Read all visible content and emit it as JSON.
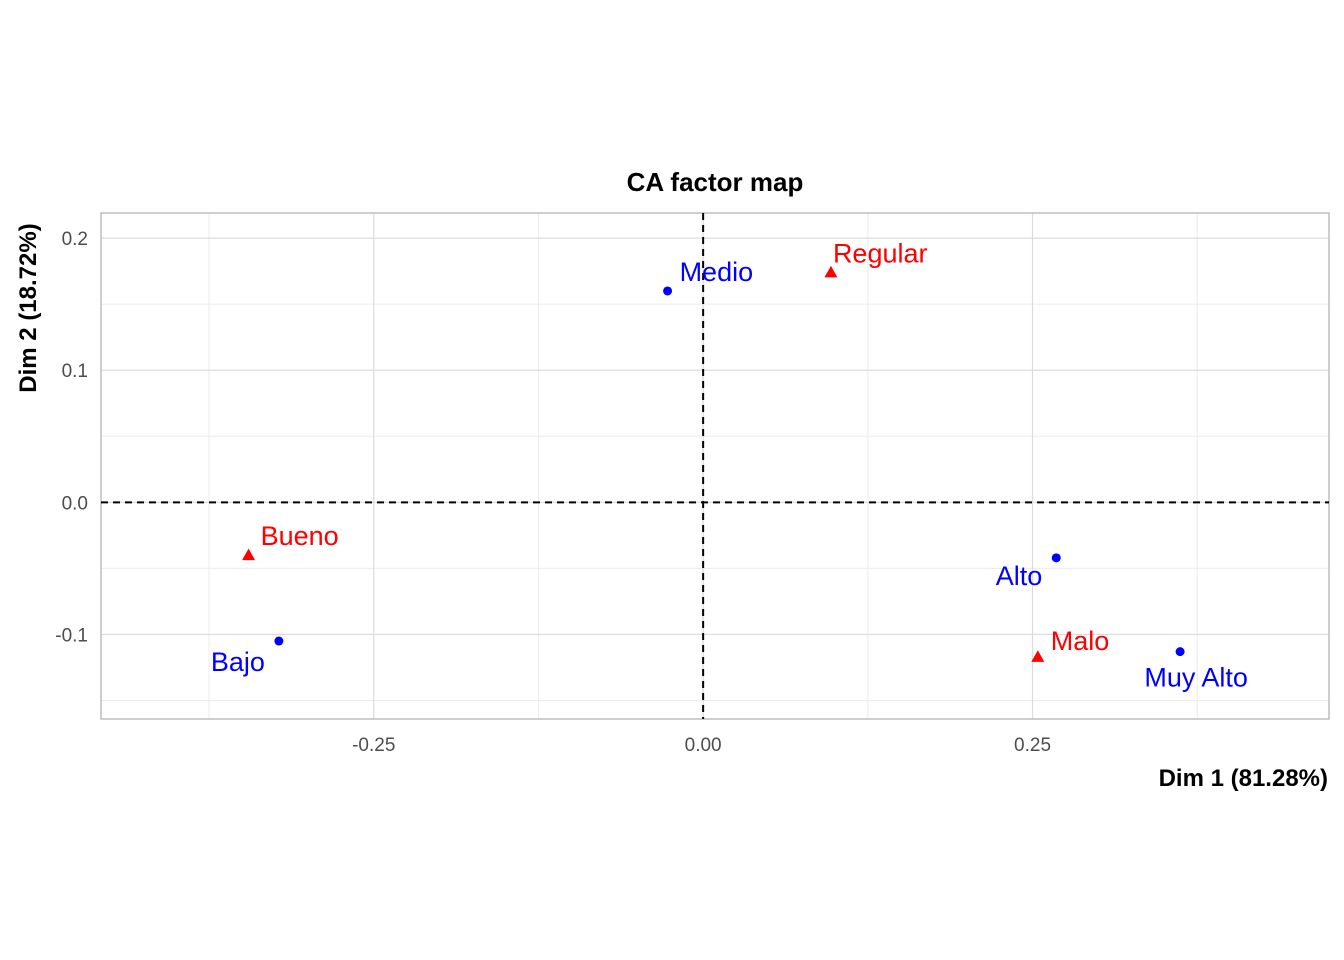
{
  "chart_data": {
    "type": "scatter",
    "title": "CA factor map",
    "xlabel": "Dim 1 (81.28%)",
    "ylabel": "Dim 2 (18.72%)",
    "xlim": [
      -0.457,
      0.475
    ],
    "ylim": [
      -0.164,
      0.219
    ],
    "x_ticks": [
      -0.25,
      0.0,
      0.25
    ],
    "x_tick_labels": [
      "-0.25",
      "0.00",
      "0.25"
    ],
    "y_ticks": [
      -0.1,
      0.0,
      0.1,
      0.2
    ],
    "y_tick_labels": [
      "-0.1",
      "0.0",
      "0.1",
      "0.2"
    ],
    "grid": true,
    "reference_lines": {
      "x": 0,
      "y": 0,
      "style": "dashed"
    },
    "series": [
      {
        "marker": "circle",
        "color": "#0000FF",
        "points": [
          {
            "label": "Medio",
            "x": -0.027,
            "y": 0.16
          },
          {
            "label": "Bajo",
            "x": -0.322,
            "y": -0.105
          },
          {
            "label": "Alto",
            "x": 0.268,
            "y": -0.042
          },
          {
            "label": "Muy Alto",
            "x": 0.362,
            "y": -0.113
          }
        ]
      },
      {
        "marker": "triangle",
        "color": "#FF0000",
        "points": [
          {
            "label": "Regular",
            "x": 0.097,
            "y": 0.174
          },
          {
            "label": "Bueno",
            "x": -0.345,
            "y": -0.04
          },
          {
            "label": "Malo",
            "x": 0.254,
            "y": -0.117
          }
        ]
      }
    ]
  }
}
